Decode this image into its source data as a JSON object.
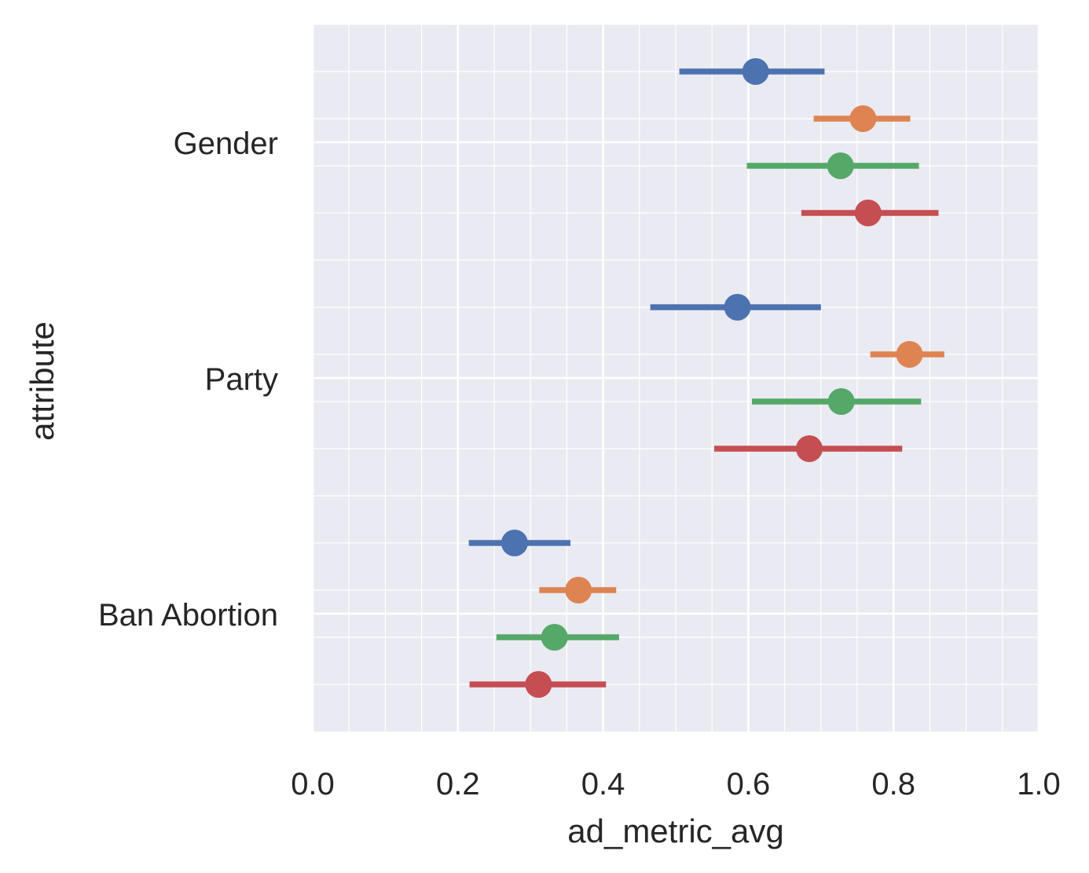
{
  "chart_data": {
    "type": "scatter",
    "subtype": "horizontal point plot with error bars",
    "title": "",
    "xlabel": "ad_metric_avg",
    "ylabel": "attribute",
    "xlim": [
      0.0,
      1.0
    ],
    "x_ticks": [
      "0.0",
      "0.2",
      "0.4",
      "0.6",
      "0.8",
      "1.0"
    ],
    "x_tick_values": [
      0.0,
      0.2,
      0.4,
      0.6,
      0.8,
      1.0
    ],
    "categories": [
      "Gender",
      "Party",
      "Ban Abortion"
    ],
    "grid": true,
    "legend": "none",
    "background": "#eaeaf2",
    "series": [
      {
        "color": "#4c72b0",
        "values": [
          0.61,
          0.585,
          0.278
        ],
        "ci": [
          [
            0.505,
            0.705
          ],
          [
            0.465,
            0.7
          ],
          [
            0.215,
            0.355
          ]
        ]
      },
      {
        "color": "#dd8452",
        "values": [
          0.758,
          0.822,
          0.366
        ],
        "ci": [
          [
            0.69,
            0.823
          ],
          [
            0.768,
            0.87
          ],
          [
            0.312,
            0.418
          ]
        ]
      },
      {
        "color": "#55a868",
        "values": [
          0.727,
          0.728,
          0.333
        ],
        "ci": [
          [
            0.598,
            0.835
          ],
          [
            0.605,
            0.838
          ],
          [
            0.253,
            0.422
          ]
        ]
      },
      {
        "color": "#c44e52",
        "values": [
          0.765,
          0.684,
          0.311
        ],
        "ci": [
          [
            0.673,
            0.862
          ],
          [
            0.553,
            0.812
          ],
          [
            0.216,
            0.404
          ]
        ]
      }
    ]
  }
}
